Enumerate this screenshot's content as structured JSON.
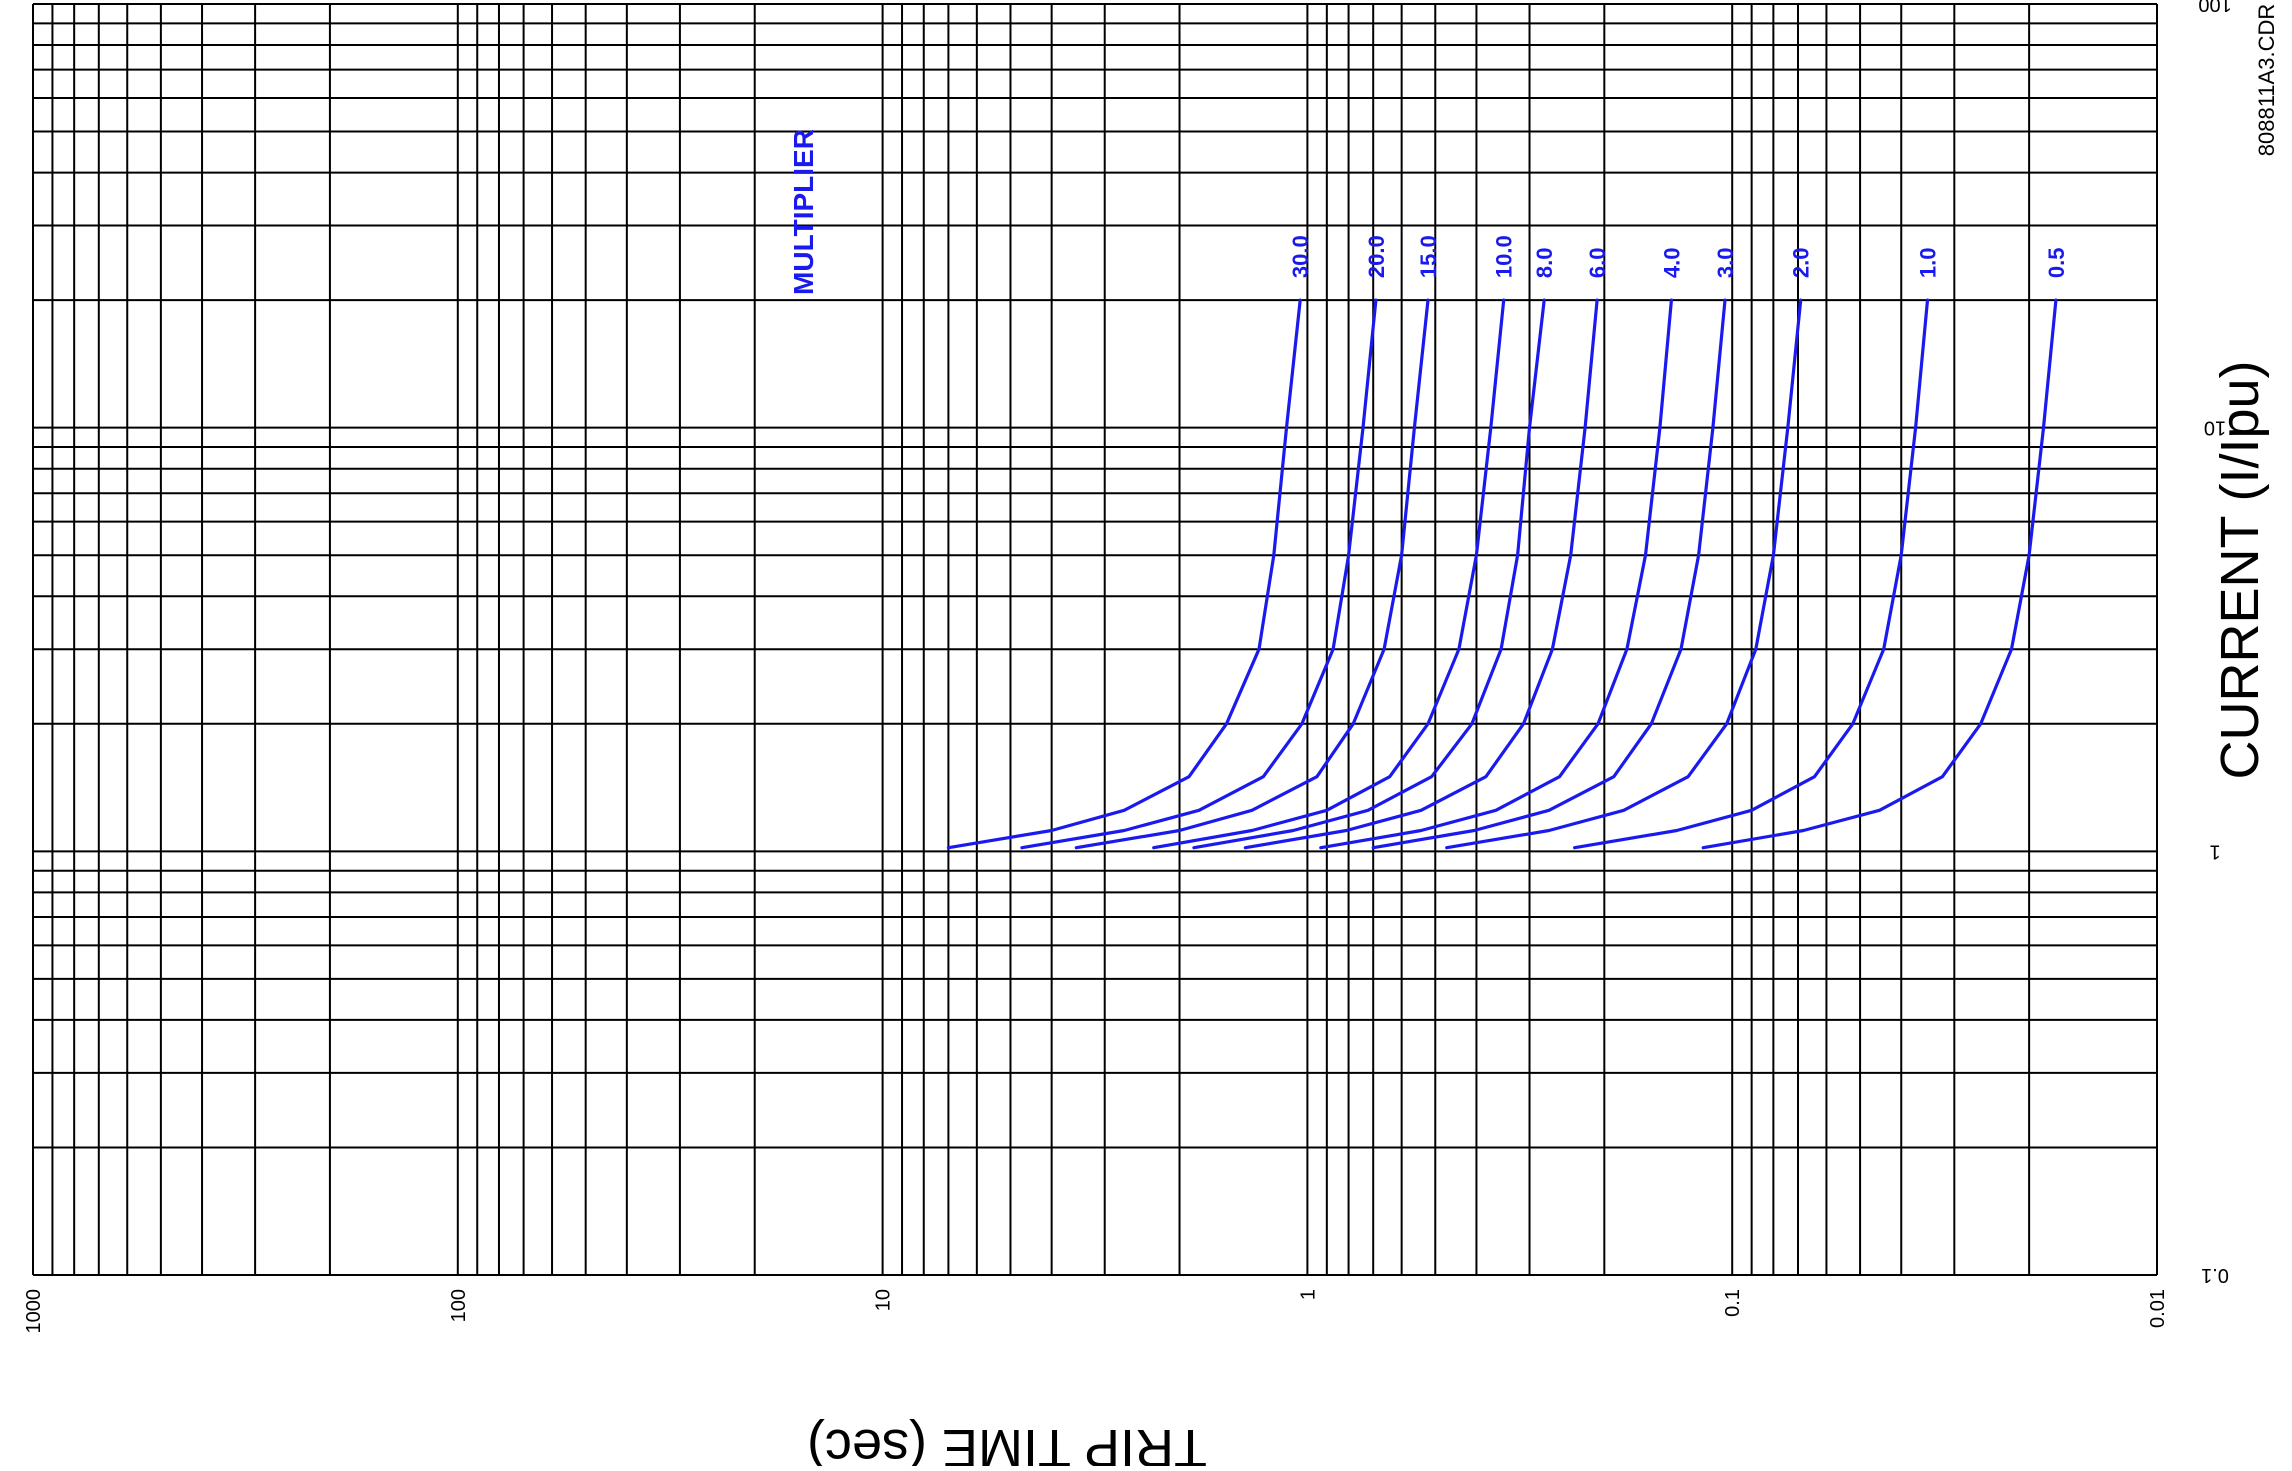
{
  "chart_data": {
    "type": "line",
    "orientation": "rotated-90-cw",
    "xlabel": "TRIP TIME (sec)",
    "ylabel": "CURRENT (I/Ipu)",
    "x_scale": "log",
    "y_scale": "log",
    "xlim": [
      0.01,
      1000
    ],
    "ylim": [
      0.1,
      100
    ],
    "x_ticks": [
      "1000",
      "100",
      "10",
      "1",
      "0.1",
      "0.01"
    ],
    "y_ticks": [
      "0.1",
      "1",
      "10",
      "100"
    ],
    "grid": true,
    "legend_title": "MULTIPLIER",
    "drawing_code": "808811A3.CDR",
    "line_color": "#1a1aee",
    "grid_color": "#000000",
    "series": [
      {
        "name": "30.0",
        "points": [
          [
            7.0,
            1.02
          ],
          [
            4.0,
            1.12
          ],
          [
            2.7,
            1.25
          ],
          [
            1.9,
            1.5
          ],
          [
            1.55,
            2.0
          ],
          [
            1.3,
            3.0
          ],
          [
            1.2,
            5.0
          ],
          [
            1.12,
            10.0
          ],
          [
            1.04,
            20.0
          ]
        ]
      },
      {
        "name": "20.0",
        "points": [
          [
            4.7,
            1.02
          ],
          [
            2.7,
            1.12
          ],
          [
            1.8,
            1.25
          ],
          [
            1.27,
            1.5
          ],
          [
            1.03,
            2.0
          ],
          [
            0.87,
            3.0
          ],
          [
            0.8,
            5.0
          ],
          [
            0.74,
            10.0
          ],
          [
            0.69,
            20.0
          ]
        ]
      },
      {
        "name": "15.0",
        "points": [
          [
            3.5,
            1.02
          ],
          [
            2.0,
            1.12
          ],
          [
            1.35,
            1.25
          ],
          [
            0.95,
            1.5
          ],
          [
            0.78,
            2.0
          ],
          [
            0.66,
            3.0
          ],
          [
            0.6,
            5.0
          ],
          [
            0.56,
            10.0
          ],
          [
            0.52,
            20.0
          ]
        ]
      },
      {
        "name": "10.0",
        "points": [
          [
            2.3,
            1.02
          ],
          [
            1.35,
            1.12
          ],
          [
            0.9,
            1.25
          ],
          [
            0.64,
            1.5
          ],
          [
            0.52,
            2.0
          ],
          [
            0.44,
            3.0
          ],
          [
            0.4,
            5.0
          ],
          [
            0.37,
            10.0
          ],
          [
            0.345,
            20.0
          ]
        ]
      },
      {
        "name": "8.0",
        "points": [
          [
            1.85,
            1.02
          ],
          [
            1.08,
            1.12
          ],
          [
            0.72,
            1.25
          ],
          [
            0.51,
            1.5
          ],
          [
            0.41,
            2.0
          ],
          [
            0.35,
            3.0
          ],
          [
            0.32,
            5.0
          ],
          [
            0.3,
            10.0
          ],
          [
            0.277,
            20.0
          ]
        ]
      },
      {
        "name": "6.0",
        "points": [
          [
            1.4,
            1.02
          ],
          [
            0.81,
            1.12
          ],
          [
            0.54,
            1.25
          ],
          [
            0.38,
            1.5
          ],
          [
            0.31,
            2.0
          ],
          [
            0.265,
            3.0
          ],
          [
            0.24,
            5.0
          ],
          [
            0.222,
            10.0
          ],
          [
            0.208,
            20.0
          ]
        ]
      },
      {
        "name": "4.0",
        "points": [
          [
            0.93,
            1.02
          ],
          [
            0.54,
            1.12
          ],
          [
            0.36,
            1.25
          ],
          [
            0.255,
            1.5
          ],
          [
            0.207,
            2.0
          ],
          [
            0.177,
            3.0
          ],
          [
            0.16,
            5.0
          ],
          [
            0.148,
            10.0
          ],
          [
            0.139,
            20.0
          ]
        ]
      },
      {
        "name": "3.0",
        "points": [
          [
            0.7,
            1.02
          ],
          [
            0.405,
            1.12
          ],
          [
            0.27,
            1.25
          ],
          [
            0.19,
            1.5
          ],
          [
            0.155,
            2.0
          ],
          [
            0.132,
            3.0
          ],
          [
            0.12,
            5.0
          ],
          [
            0.111,
            10.0
          ],
          [
            0.104,
            20.0
          ]
        ]
      },
      {
        "name": "2.0",
        "points": [
          [
            0.47,
            1.02
          ],
          [
            0.27,
            1.12
          ],
          [
            0.18,
            1.25
          ],
          [
            0.127,
            1.5
          ],
          [
            0.103,
            2.0
          ],
          [
            0.088,
            3.0
          ],
          [
            0.08,
            5.0
          ],
          [
            0.074,
            10.0
          ],
          [
            0.069,
            20.0
          ]
        ]
      },
      {
        "name": "1.0",
        "points": [
          [
            0.235,
            1.02
          ],
          [
            0.135,
            1.12
          ],
          [
            0.09,
            1.25
          ],
          [
            0.064,
            1.5
          ],
          [
            0.052,
            2.0
          ],
          [
            0.044,
            3.0
          ],
          [
            0.04,
            5.0
          ],
          [
            0.037,
            10.0
          ],
          [
            0.0347,
            20.0
          ]
        ]
      },
      {
        "name": "0.5",
        "points": [
          [
            0.117,
            1.02
          ],
          [
            0.068,
            1.12
          ],
          [
            0.045,
            1.25
          ],
          [
            0.032,
            1.5
          ],
          [
            0.026,
            2.0
          ],
          [
            0.022,
            3.0
          ],
          [
            0.02,
            5.0
          ],
          [
            0.0185,
            10.0
          ],
          [
            0.0173,
            20.0
          ]
        ]
      }
    ]
  }
}
